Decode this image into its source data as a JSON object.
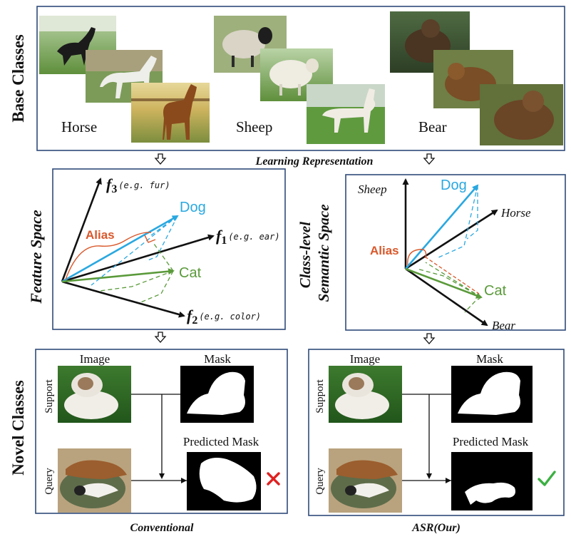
{
  "base_classes": {
    "section_label": "Base Classes",
    "classes": [
      {
        "name": "Horse",
        "photos": [
          "horse-photo-black",
          "horse-photo-white",
          "horse-photo-brown"
        ]
      },
      {
        "name": "Sheep",
        "photos": [
          "sheep-photo-black-face",
          "sheep-photo-white",
          "sheep-photo-shorn"
        ]
      },
      {
        "name": "Bear",
        "photos": [
          "bear-photo-1",
          "bear-photo-2",
          "bear-photo-3"
        ]
      }
    ]
  },
  "flow": {
    "learning_label": "Learning Representation"
  },
  "feature_space": {
    "title": "Feature Space",
    "axis_f3_main": "f",
    "axis_f3_sub": "3",
    "axis_f3_note": "(e.g. fur)",
    "axis_f1_main": "f",
    "axis_f1_sub": "1",
    "axis_f1_note": "(e.g. ear)",
    "axis_f2_main": "f",
    "axis_f2_sub": "2",
    "axis_f2_note": "(e.g. color)",
    "dog_label": "Dog",
    "cat_label": "Cat",
    "alias_label": "Alias"
  },
  "semantic_space": {
    "title_line1": "Class-level",
    "title_line2": "Semantic Space",
    "sheep_label": "Sheep",
    "horse_label": "Horse",
    "bear_label": "Bear",
    "dog_label": "Dog",
    "cat_label": "Cat",
    "alias_label": "Alias"
  },
  "novel_classes": {
    "section_label": "Novel Classes",
    "conventional": {
      "image_header": "Image",
      "mask_header": "Mask",
      "support_label": "Support",
      "query_label": "Query",
      "predicted_label": "Predicted Mask",
      "caption": "Conventional",
      "result": "cross-mark"
    },
    "ours": {
      "image_header": "Image",
      "mask_header": "Mask",
      "support_label": "Support",
      "query_label": "Query",
      "predicted_label": "Predicted Mask",
      "caption": "ASR(Our)",
      "result": "check-mark"
    }
  },
  "colors": {
    "dog_blue": "#2aa8e0",
    "cat_green": "#5a9a3a",
    "alias_red": "#d9582b",
    "frame_navy": "#2f4a7a",
    "wrong_red": "#e02020",
    "right_green": "#3cb043"
  }
}
